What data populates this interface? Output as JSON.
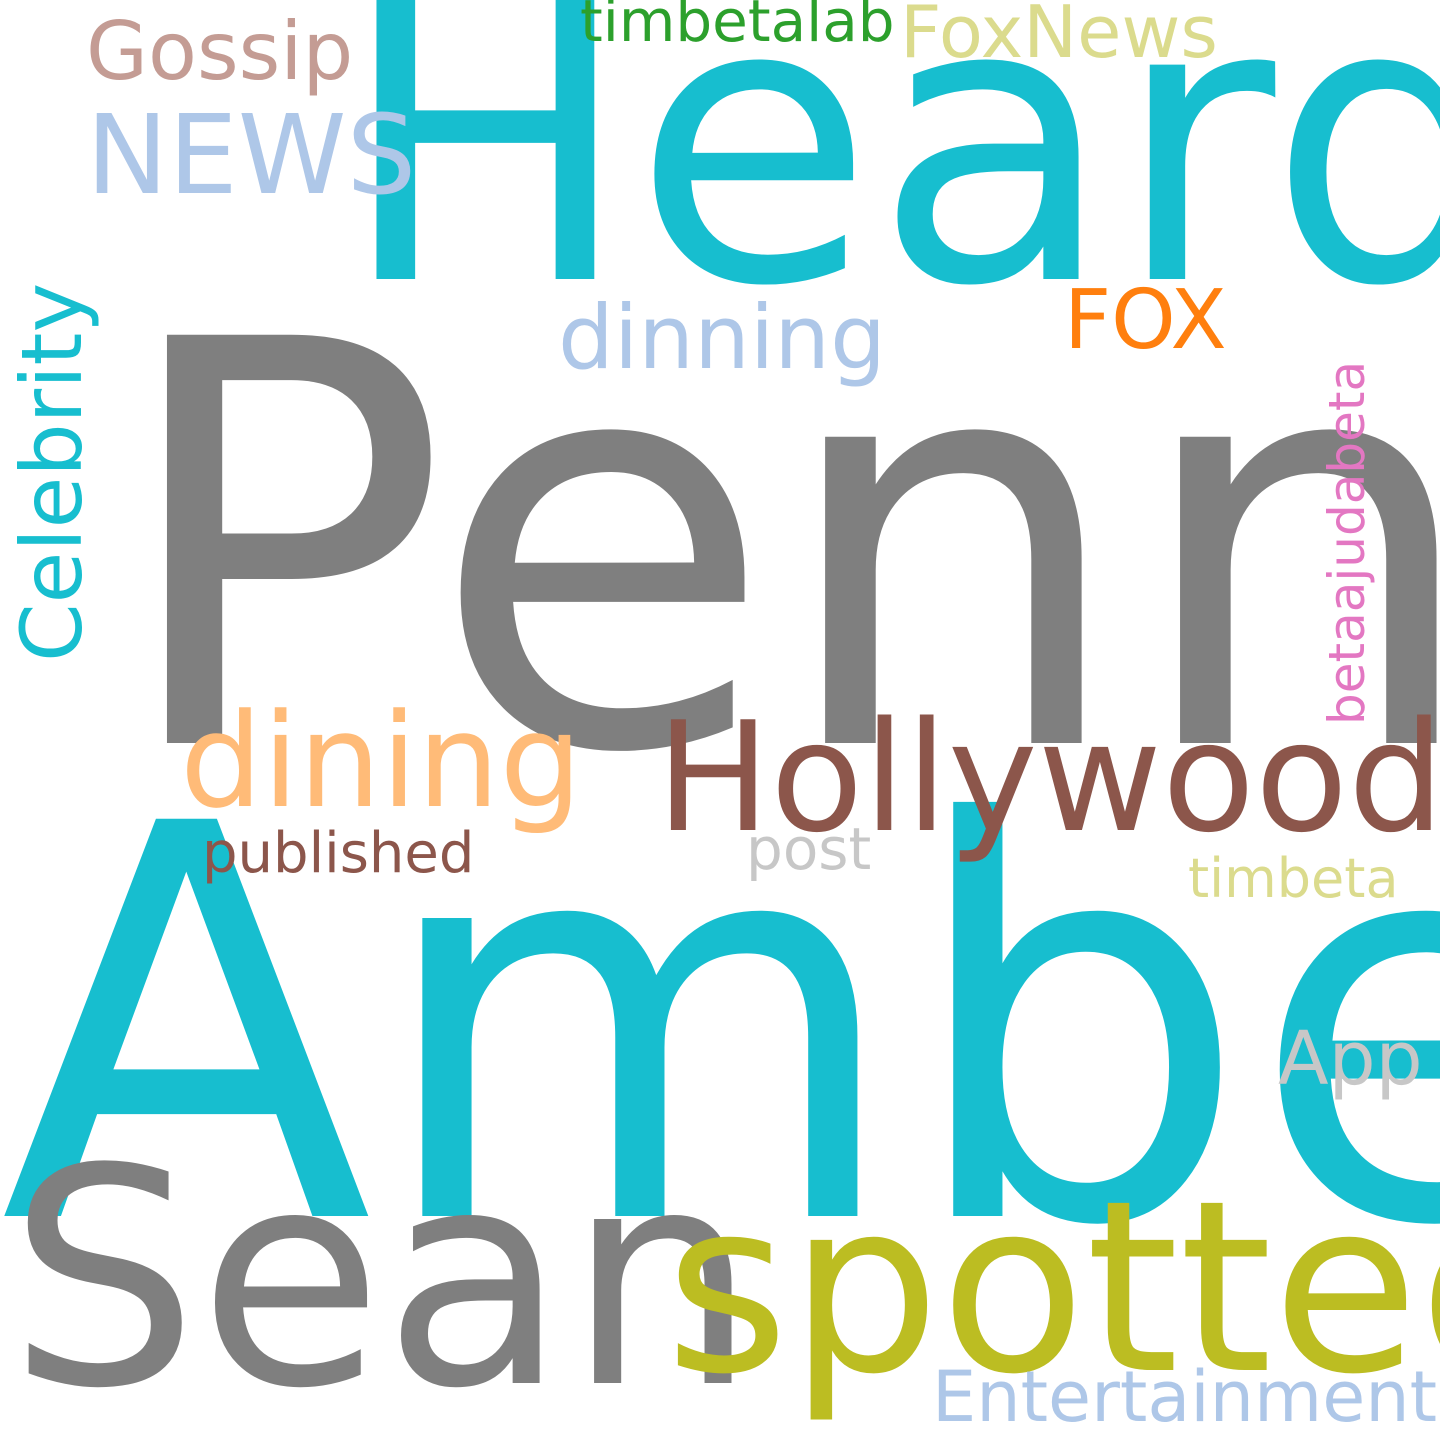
{
  "word_cloud": {
    "background": "#ffffff",
    "words": [
      {
        "text": "Penn",
        "color": "#7f7f7f",
        "orientation": "horizontal"
      },
      {
        "text": "Amber",
        "color": "#17becf",
        "orientation": "horizontal"
      },
      {
        "text": "Heard",
        "color": "#17becf",
        "orientation": "horizontal"
      },
      {
        "text": "Sean",
        "color": "#7f7f7f",
        "orientation": "horizontal"
      },
      {
        "text": "spotted",
        "color": "#bcbd22",
        "orientation": "horizontal"
      },
      {
        "text": "Hollywood",
        "color": "#8c564b",
        "orientation": "horizontal"
      },
      {
        "text": "dining",
        "color": "#ffbb78",
        "orientation": "horizontal"
      },
      {
        "text": "NEWS",
        "color": "#aec7e8",
        "orientation": "horizontal"
      },
      {
        "text": "Celebrity",
        "color": "#17becf",
        "orientation": "vertical"
      },
      {
        "text": "FoxNews",
        "color": "#dbdb8d",
        "orientation": "horizontal"
      },
      {
        "text": "Gossip",
        "color": "#c49c94",
        "orientation": "horizontal"
      },
      {
        "text": "Entertainment",
        "color": "#aec7e8",
        "orientation": "horizontal"
      },
      {
        "text": "FOX",
        "color": "#ff7f0e",
        "orientation": "horizontal"
      },
      {
        "text": "dinning",
        "color": "#aec7e8",
        "orientation": "horizontal"
      },
      {
        "text": "App",
        "color": "#c7c7c7",
        "orientation": "horizontal"
      },
      {
        "text": "published",
        "color": "#8c564b",
        "orientation": "horizontal"
      },
      {
        "text": "post",
        "color": "#c7c7c7",
        "orientation": "horizontal"
      },
      {
        "text": "timbeta",
        "color": "#dbdb8d",
        "orientation": "horizontal"
      },
      {
        "text": "timbetalab",
        "color": "#2ca02c",
        "orientation": "horizontal"
      },
      {
        "text": "betaajudabeta",
        "color": "#e377c2",
        "orientation": "vertical"
      }
    ]
  }
}
